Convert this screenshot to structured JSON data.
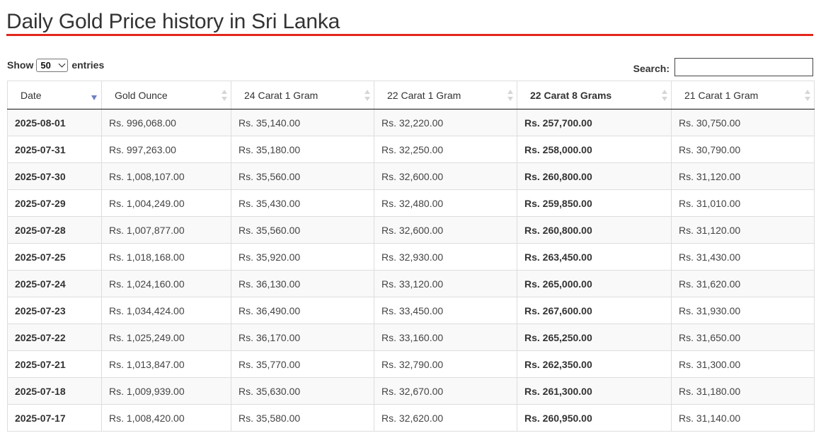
{
  "page": {
    "title": "Daily Gold Price history in Sri Lanka",
    "accent_color": "#e1251b"
  },
  "length": {
    "prefix": "Show",
    "selected": "50",
    "suffix": "entries",
    "icon": "chevron-down-icon"
  },
  "search": {
    "label": "Search:",
    "value": "",
    "placeholder": ""
  },
  "table": {
    "sort_column": "Date",
    "sort_direction": "descending",
    "columns": [
      "Date",
      "Gold Ounce",
      "24 Carat 1 Gram",
      "22 Carat 1 Gram",
      "22 Carat 8 Grams",
      "21 Carat 1 Gram"
    ],
    "rows": [
      [
        "2025-08-01",
        "Rs. 996,068.00",
        "Rs. 35,140.00",
        "Rs. 32,220.00",
        "Rs. 257,700.00",
        "Rs. 30,750.00"
      ],
      [
        "2025-07-31",
        "Rs. 997,263.00",
        "Rs. 35,180.00",
        "Rs. 32,250.00",
        "Rs. 258,000.00",
        "Rs. 30,790.00"
      ],
      [
        "2025-07-30",
        "Rs. 1,008,107.00",
        "Rs. 35,560.00",
        "Rs. 32,600.00",
        "Rs. 260,800.00",
        "Rs. 31,120.00"
      ],
      [
        "2025-07-29",
        "Rs. 1,004,249.00",
        "Rs. 35,430.00",
        "Rs. 32,480.00",
        "Rs. 259,850.00",
        "Rs. 31,010.00"
      ],
      [
        "2025-07-28",
        "Rs. 1,007,877.00",
        "Rs. 35,560.00",
        "Rs. 32,600.00",
        "Rs. 260,800.00",
        "Rs. 31,120.00"
      ],
      [
        "2025-07-25",
        "Rs. 1,018,168.00",
        "Rs. 35,920.00",
        "Rs. 32,930.00",
        "Rs. 263,450.00",
        "Rs. 31,430.00"
      ],
      [
        "2025-07-24",
        "Rs. 1,024,160.00",
        "Rs. 36,130.00",
        "Rs. 33,120.00",
        "Rs. 265,000.00",
        "Rs. 31,620.00"
      ],
      [
        "2025-07-23",
        "Rs. 1,034,424.00",
        "Rs. 36,490.00",
        "Rs. 33,450.00",
        "Rs. 267,600.00",
        "Rs. 31,930.00"
      ],
      [
        "2025-07-22",
        "Rs. 1,025,249.00",
        "Rs. 36,170.00",
        "Rs. 33,160.00",
        "Rs. 265,250.00",
        "Rs. 31,650.00"
      ],
      [
        "2025-07-21",
        "Rs. 1,013,847.00",
        "Rs. 35,770.00",
        "Rs. 32,790.00",
        "Rs. 262,350.00",
        "Rs. 31,300.00"
      ],
      [
        "2025-07-18",
        "Rs. 1,009,939.00",
        "Rs. 35,630.00",
        "Rs. 32,670.00",
        "Rs. 261,300.00",
        "Rs. 31,180.00"
      ],
      [
        "2025-07-17",
        "Rs. 1,008,420.00",
        "Rs. 35,580.00",
        "Rs. 32,620.00",
        "Rs. 260,950.00",
        "Rs. 31,140.00"
      ]
    ]
  }
}
